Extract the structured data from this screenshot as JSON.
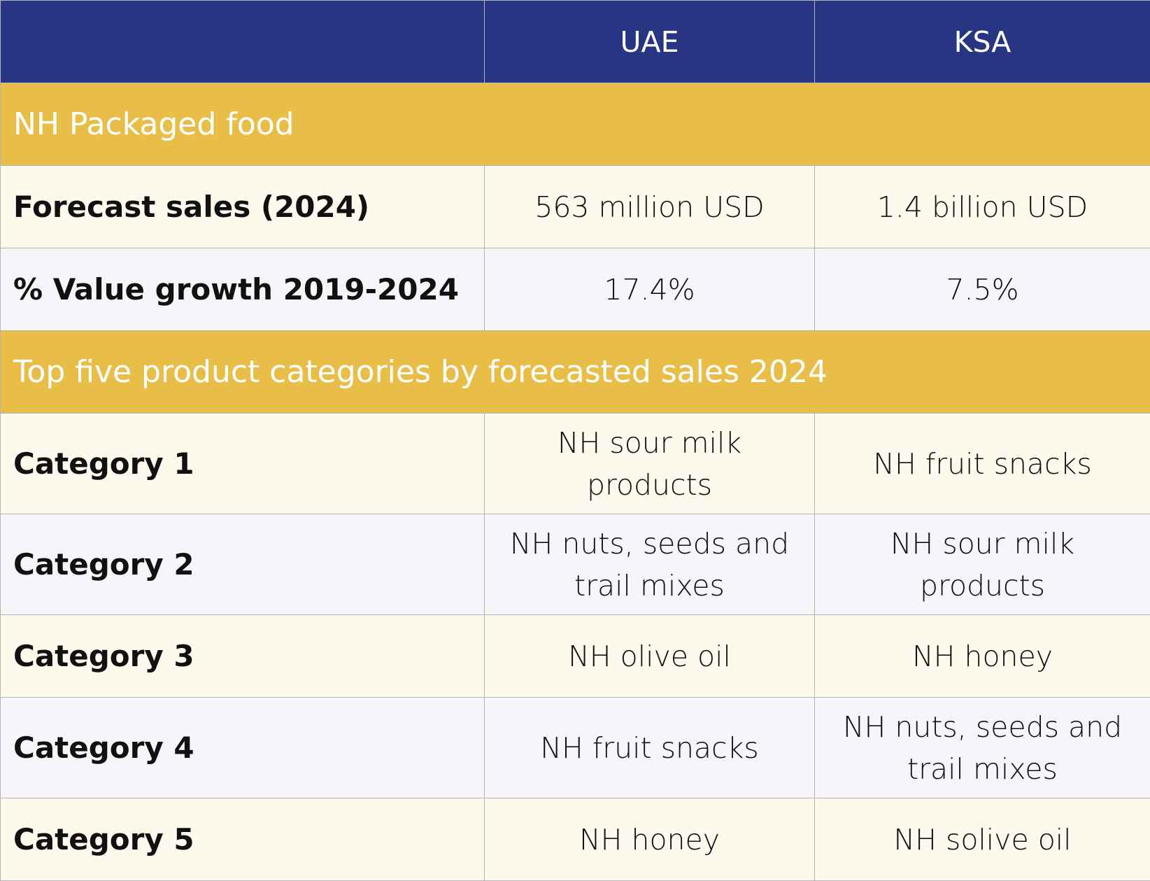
{
  "header": {
    "blank": "",
    "col1": "UAE",
    "col2": "KSA"
  },
  "section1": {
    "title": "NH Packaged food"
  },
  "metrics": [
    {
      "label": "Forecast sales (2024)",
      "uae": "563 million USD",
      "ksa": "1.4 billion USD"
    },
    {
      "label": "% Value growth 2019-2024",
      "uae": "17.4%",
      "ksa": "7.5%"
    }
  ],
  "section2": {
    "title": "Top five product categories by forecasted sales 2024"
  },
  "categories": [
    {
      "label": "Category 1",
      "uae": "NH sour milk products",
      "ksa": "NH fruit snacks"
    },
    {
      "label": "Category 2",
      "uae": "NH nuts, seeds and trail mixes",
      "ksa": "NH sour milk products"
    },
    {
      "label": "Category 3",
      "uae": "NH olive oil",
      "ksa": "NH honey"
    },
    {
      "label": "Category 4",
      "uae": "NH fruit snacks",
      "ksa": "NH nuts, seeds and trail mixes"
    },
    {
      "label": "Category 5",
      "uae": "NH honey",
      "ksa": "NH solive oil"
    }
  ]
}
